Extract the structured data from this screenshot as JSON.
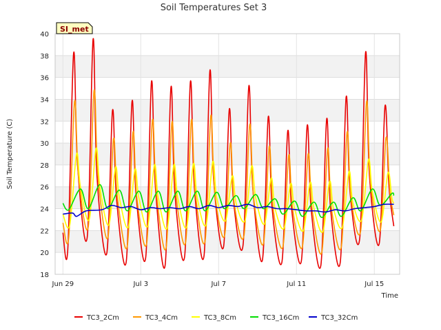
{
  "chart_data": {
    "type": "line",
    "title": "Soil Temperatures Set 3",
    "xlabel": "Time",
    "ylabel": "Soil Temperature (C)",
    "site_label": "SI_met",
    "ylim": [
      18,
      40
    ],
    "yticks": [
      18,
      20,
      22,
      24,
      26,
      28,
      30,
      32,
      34,
      36,
      38,
      40
    ],
    "xlim": [
      -0.4,
      17.3
    ],
    "xtick_positions": [
      0,
      4,
      8,
      12,
      16
    ],
    "xtick_labels": [
      "Jun 29",
      "Jul 3",
      "Jul 7",
      "Jul 11",
      "Jul 15"
    ],
    "grid": true,
    "legend_position": "bottom",
    "series": [
      {
        "name": "TC3_2Cm",
        "color": "#e80000",
        "x": [
          0.0,
          0.25,
          0.55,
          0.75,
          1.25,
          1.55,
          1.75,
          2.25,
          2.55,
          2.75,
          3.25,
          3.55,
          3.75,
          4.25,
          4.55,
          4.75,
          5.25,
          5.55,
          5.75,
          6.25,
          6.55,
          6.75,
          7.25,
          7.55,
          7.75,
          8.25,
          8.55,
          8.75,
          9.25,
          9.55,
          9.75,
          10.25,
          10.55,
          10.75,
          11.25,
          11.55,
          11.75,
          12.25,
          12.55,
          12.75,
          13.25,
          13.55,
          13.75,
          14.25,
          14.55,
          14.75,
          15.25,
          15.55,
          15.75,
          16.25,
          16.55,
          16.75,
          17.0
        ],
        "y": [
          21.8,
          20.3,
          38.2,
          28.0,
          21.4,
          39.5,
          27.0,
          19.9,
          33.0,
          25.0,
          19.1,
          33.8,
          25.5,
          19.5,
          35.6,
          26.0,
          18.8,
          35.1,
          25.5,
          19.6,
          35.6,
          26.0,
          19.7,
          36.6,
          26.5,
          20.5,
          33.1,
          25.0,
          20.6,
          35.2,
          26.0,
          19.3,
          32.4,
          24.0,
          19.1,
          31.1,
          24.0,
          19.2,
          31.6,
          24.0,
          18.8,
          32.2,
          24.0,
          19.1,
          34.2,
          25.5,
          21.3,
          38.3,
          27.0,
          20.8,
          33.4,
          26.0,
          22.4
        ]
      },
      {
        "name": "TC3_4Cm",
        "color": "#ff9900",
        "x": [
          0.0,
          0.3,
          0.6,
          0.8,
          1.3,
          1.6,
          1.8,
          2.3,
          2.6,
          2.8,
          3.3,
          3.6,
          3.8,
          4.3,
          4.6,
          4.8,
          5.3,
          5.6,
          5.8,
          6.3,
          6.6,
          6.8,
          7.3,
          7.6,
          7.8,
          8.3,
          8.6,
          8.8,
          9.3,
          9.6,
          9.8,
          10.3,
          10.6,
          10.8,
          11.3,
          11.6,
          11.8,
          12.3,
          12.6,
          12.8,
          13.3,
          13.6,
          13.8,
          14.3,
          14.6,
          14.8,
          15.3,
          15.6,
          15.8,
          16.3,
          16.6,
          16.8,
          17.0
        ],
        "y": [
          22.7,
          21.4,
          33.8,
          27.0,
          22.3,
          34.8,
          27.0,
          21.3,
          30.4,
          25.0,
          20.5,
          31.0,
          25.0,
          20.8,
          32.1,
          25.5,
          20.4,
          31.9,
          25.5,
          20.9,
          32.1,
          25.5,
          21.0,
          32.5,
          25.5,
          21.5,
          30.0,
          24.5,
          21.5,
          31.7,
          25.0,
          20.8,
          29.7,
          24.0,
          20.5,
          28.9,
          24.0,
          20.5,
          29.0,
          24.0,
          20.0,
          29.5,
          24.0,
          20.5,
          31.0,
          25.0,
          22.0,
          33.8,
          26.5,
          22.0,
          30.5,
          25.5,
          23.4
        ]
      },
      {
        "name": "TC3_8Cm",
        "color": "#ffff00",
        "x": [
          0.0,
          0.35,
          0.7,
          0.9,
          1.35,
          1.7,
          1.9,
          2.35,
          2.7,
          2.9,
          3.35,
          3.7,
          3.9,
          4.35,
          4.7,
          4.9,
          5.35,
          5.7,
          5.9,
          6.35,
          6.7,
          6.9,
          7.35,
          7.7,
          7.9,
          8.35,
          8.7,
          8.9,
          9.35,
          9.7,
          9.9,
          10.35,
          10.7,
          10.9,
          11.35,
          11.7,
          11.9,
          12.35,
          12.7,
          12.9,
          13.35,
          13.7,
          13.9,
          14.35,
          14.7,
          14.9,
          15.35,
          15.7,
          15.9,
          16.35,
          16.7,
          16.9,
          17.0
        ],
        "y": [
          23.5,
          22.5,
          29.0,
          26.0,
          23.0,
          29.5,
          26.0,
          22.5,
          27.8,
          25.0,
          22.3,
          27.6,
          25.0,
          22.4,
          28.0,
          25.0,
          22.2,
          28.0,
          25.0,
          22.3,
          28.1,
          25.0,
          22.5,
          28.3,
          25.0,
          22.9,
          27.0,
          24.5,
          22.9,
          27.9,
          25.0,
          22.6,
          26.8,
          24.0,
          22.2,
          26.3,
          24.0,
          22.0,
          26.4,
          24.0,
          21.9,
          26.5,
          24.0,
          22.3,
          27.4,
          24.5,
          23.0,
          28.5,
          25.5,
          22.8,
          27.3,
          25.0,
          24.5
        ]
      },
      {
        "name": "TC3_16Cm",
        "color": "#00dd00",
        "x": [
          0.0,
          0.3,
          0.9,
          1.3,
          1.9,
          2.3,
          2.9,
          3.3,
          3.9,
          4.3,
          4.9,
          5.3,
          5.9,
          6.3,
          6.9,
          7.3,
          7.9,
          8.3,
          8.9,
          9.3,
          9.9,
          10.3,
          10.9,
          11.3,
          11.9,
          12.3,
          12.9,
          13.3,
          13.9,
          14.3,
          14.9,
          15.3,
          15.9,
          16.3,
          16.9,
          17.0
        ],
        "y": [
          24.5,
          23.9,
          25.8,
          24.0,
          26.2,
          24.0,
          25.7,
          23.8,
          25.6,
          23.7,
          25.6,
          23.7,
          25.6,
          23.8,
          25.6,
          23.8,
          25.5,
          24.0,
          25.2,
          24.0,
          25.3,
          24.0,
          24.9,
          23.5,
          24.7,
          23.3,
          24.6,
          23.2,
          24.6,
          23.3,
          25.0,
          23.8,
          25.8,
          24.3,
          25.4,
          25.2
        ]
      },
      {
        "name": "TC3_32Cm",
        "color": "#0000cc",
        "x": [
          0.0,
          0.5,
          0.7,
          1.2,
          2.0,
          2.5,
          3.0,
          3.5,
          4.0,
          4.5,
          5.0,
          5.5,
          6.0,
          6.5,
          7.0,
          7.5,
          8.0,
          8.5,
          9.0,
          9.5,
          10.0,
          10.5,
          11.0,
          11.5,
          12.0,
          12.5,
          13.0,
          13.5,
          14.0,
          14.5,
          15.0,
          15.5,
          16.0,
          16.5,
          17.0
        ],
        "y": [
          23.5,
          23.6,
          23.3,
          23.8,
          23.9,
          24.3,
          24.1,
          24.2,
          23.9,
          24.1,
          24.0,
          24.1,
          24.0,
          24.2,
          24.0,
          24.3,
          24.1,
          24.3,
          24.2,
          24.4,
          24.1,
          24.2,
          24.0,
          24.0,
          23.9,
          23.8,
          23.8,
          23.7,
          23.9,
          23.8,
          24.0,
          24.1,
          24.2,
          24.4,
          24.4
        ]
      }
    ]
  }
}
